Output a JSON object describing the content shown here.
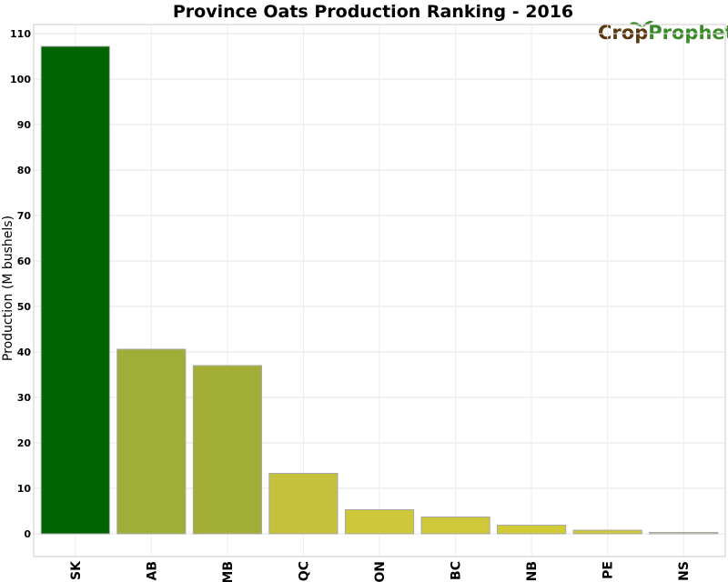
{
  "logo": {
    "part1": "Crop",
    "part2": "Prophet"
  },
  "chart_data": {
    "type": "bar",
    "title": "Province Oats Production Ranking - 2016",
    "xlabel": "",
    "ylabel": "Production (M bushels)",
    "ylim": [
      -5,
      112
    ],
    "yticks": [
      0,
      10,
      20,
      30,
      40,
      50,
      60,
      70,
      80,
      90,
      100,
      110
    ],
    "grid": true,
    "categories": [
      "SK",
      "AB",
      "MB",
      "QC",
      "ON",
      "BC",
      "NB",
      "PE",
      "NS"
    ],
    "values": [
      107.2,
      40.6,
      37.0,
      13.3,
      5.3,
      3.7,
      1.9,
      0.8,
      0.3
    ],
    "colors": [
      "#006400",
      "#9fae36",
      "#a3ae36",
      "#c6c13c",
      "#cdc73a",
      "#cfc93a",
      "#d1cb38",
      "#cdc73a",
      "#c8c8a0"
    ]
  }
}
